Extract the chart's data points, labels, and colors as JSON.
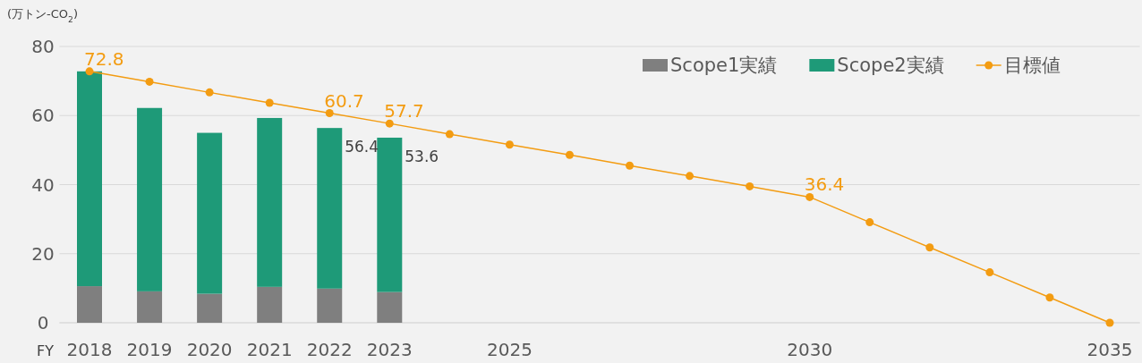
{
  "chart_data": {
    "type": "bar",
    "stacked": true,
    "ylabel": "(万トン-CO$_{2}$)",
    "xlabel": "FY",
    "categories": [
      "2018",
      "2019",
      "2020",
      "2021",
      "2022",
      "2023",
      null,
      "2025",
      null,
      null,
      null,
      null,
      "2030",
      null,
      null,
      null,
      null,
      "2035"
    ],
    "series": [
      {
        "name": "Scope1実績",
        "color": "#7f7f7f",
        "values": [
          10.6,
          9.1,
          8.4,
          10.4,
          9.9,
          8.9,
          null,
          null,
          null,
          null,
          null,
          null,
          null,
          null,
          null,
          null,
          null,
          null
        ]
      },
      {
        "name": "Scope2実績",
        "color": "#1e9a78",
        "values": [
          62.2,
          53.1,
          46.6,
          48.9,
          46.5,
          44.7,
          null,
          null,
          null,
          null,
          null,
          null,
          null,
          null,
          null,
          null,
          null,
          null
        ]
      },
      {
        "name": "目標値",
        "type": "line",
        "color": "#f39c12",
        "marker": "circle",
        "values": [
          72.8,
          69.8,
          66.7,
          63.7,
          60.7,
          57.7,
          54.6,
          51.6,
          48.6,
          45.5,
          42.5,
          39.5,
          36.4,
          29.1,
          21.8,
          14.6,
          7.3,
          0
        ],
        "value_labels": [
          "72.8",
          null,
          null,
          null,
          "60.7",
          "57.7",
          null,
          null,
          null,
          null,
          null,
          null,
          "36.4",
          null,
          null,
          null,
          null,
          null
        ]
      }
    ],
    "totals": [
      null,
      null,
      null,
      null,
      "56.4",
      "53.6",
      null,
      null,
      null,
      null,
      null,
      null,
      null,
      null,
      null,
      null,
      null,
      null
    ],
    "ylim": [
      0,
      80
    ],
    "yticks": [
      0,
      20,
      40,
      60,
      80
    ],
    "grid": "y",
    "legend": "top right"
  }
}
